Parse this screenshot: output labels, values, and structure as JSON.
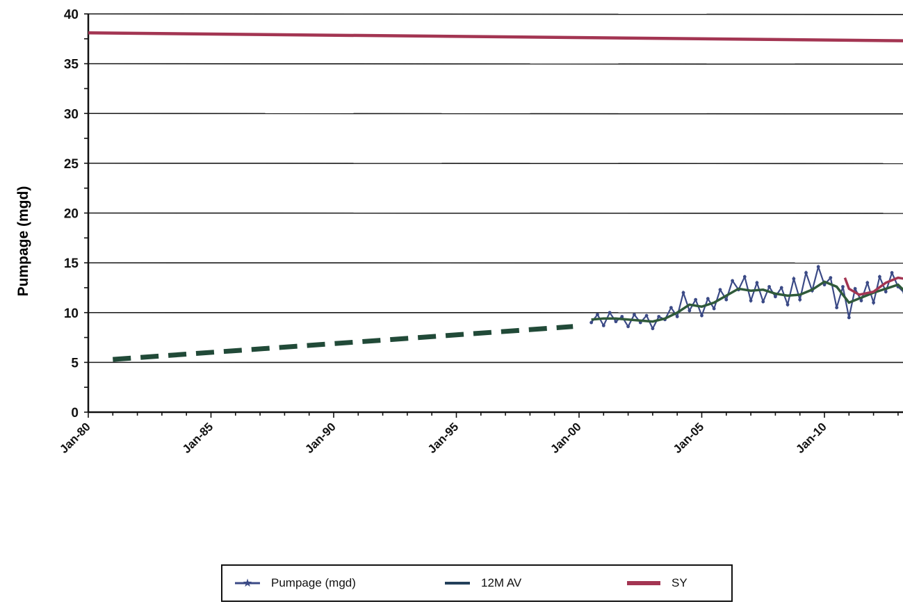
{
  "chart_data": {
    "type": "line",
    "title": "",
    "xlabel": "",
    "ylabel": "Pumpage (mgd)",
    "ylim": [
      0,
      40
    ],
    "xlim": [
      "Jan-80",
      "Apr-13"
    ],
    "yticks": [
      "0",
      "5",
      "10",
      "15",
      "20",
      "25",
      "30",
      "35",
      "40"
    ],
    "xticks": [
      "Jan-80",
      "Jan-85",
      "Jan-90",
      "Jan-95",
      "Jan-00",
      "Jan-05",
      "Jan-10"
    ],
    "grid": "horizontal",
    "legend_position": "bottom",
    "colors": {
      "pumpage": "#3b4a86",
      "avg": "#2f5a3a",
      "sy": "#a33552",
      "trend": "#214a38"
    },
    "series": [
      {
        "name": "Pumpage (mgd)",
        "x": [
          "Jul-00",
          "Oct-00",
          "Jan-01",
          "Apr-01",
          "Jul-01",
          "Oct-01",
          "Jan-02",
          "Apr-02",
          "Jul-02",
          "Oct-02",
          "Jan-03",
          "Apr-03",
          "Jul-03",
          "Oct-03",
          "Jan-04",
          "Apr-04",
          "Jul-04",
          "Oct-04",
          "Jan-05",
          "Apr-05",
          "Jul-05",
          "Oct-05",
          "Jan-06",
          "Apr-06",
          "Jul-06",
          "Oct-06",
          "Jan-07",
          "Apr-07",
          "Jul-07",
          "Oct-07",
          "Jan-08",
          "Apr-08",
          "Jul-08",
          "Oct-08",
          "Jan-09",
          "Apr-09",
          "Jul-09",
          "Oct-09",
          "Jan-10",
          "Apr-10",
          "Jul-10",
          "Oct-10",
          "Jan-11",
          "Apr-11",
          "Jul-11",
          "Oct-11",
          "Jan-12",
          "Apr-12",
          "Jul-12",
          "Oct-12",
          "Jan-13",
          "Apr-13"
        ],
        "values": [
          9.0,
          9.8,
          8.7,
          10.0,
          9.1,
          9.6,
          8.6,
          9.8,
          9.0,
          9.7,
          8.4,
          9.6,
          9.3,
          10.5,
          9.6,
          12.0,
          10.2,
          11.3,
          9.7,
          11.4,
          10.4,
          12.3,
          11.3,
          13.2,
          12.3,
          13.6,
          11.2,
          13.0,
          11.1,
          12.6,
          11.6,
          12.5,
          10.8,
          13.4,
          11.3,
          14.0,
          12.2,
          14.6,
          12.8,
          13.5,
          10.5,
          12.6,
          9.5,
          12.4,
          11.2,
          13.0,
          11.0,
          13.6,
          12.1,
          14.0,
          12.6,
          12.0
        ]
      },
      {
        "name": "12M AV",
        "x": [
          "Jul-00",
          "Jan-01",
          "Jul-01",
          "Jan-02",
          "Jul-02",
          "Jan-03",
          "Jul-03",
          "Jan-04",
          "Jul-04",
          "Jan-05",
          "Jul-05",
          "Jan-06",
          "Jul-06",
          "Jan-07",
          "Jul-07",
          "Jan-08",
          "Jul-08",
          "Jan-09",
          "Jul-09",
          "Jan-10",
          "Jul-10",
          "Jan-11",
          "Jul-11",
          "Jan-12",
          "Jul-12",
          "Jan-13",
          "Apr-13"
        ],
        "values": [
          9.3,
          9.4,
          9.4,
          9.3,
          9.2,
          9.1,
          9.4,
          10.0,
          10.8,
          10.6,
          11.0,
          11.7,
          12.4,
          12.2,
          12.3,
          11.9,
          11.7,
          11.8,
          12.3,
          13.1,
          12.6,
          11.0,
          11.5,
          12.0,
          12.4,
          12.8,
          12.2
        ]
      },
      {
        "name": "SY",
        "x": [
          "Jan-80",
          "Apr-13"
        ],
        "values": [
          38.1,
          37.3
        ]
      },
      {
        "name": "",
        "x": [
          "Jan-81",
          "Oct-99"
        ],
        "values": [
          5.3,
          8.6
        ]
      },
      {
        "name": "",
        "x": [
          "Nov-10",
          "Jan-11",
          "Jun-11",
          "Jan-12",
          "Jul-12",
          "Jan-13",
          "Apr-13"
        ],
        "values": [
          13.5,
          12.4,
          11.8,
          12.1,
          13.0,
          13.5,
          13.4
        ]
      }
    ]
  }
}
